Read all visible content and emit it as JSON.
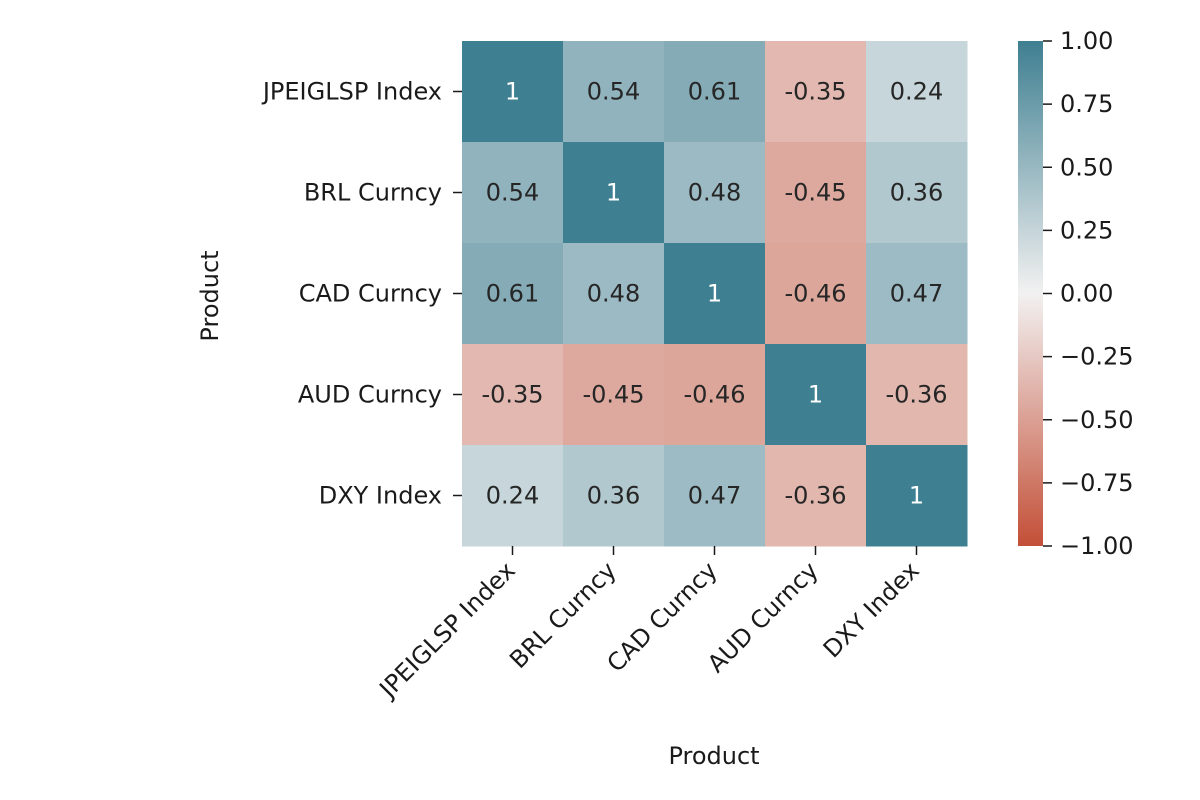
{
  "chart_data": {
    "type": "heatmap",
    "title": "",
    "xlabel": "Product",
    "ylabel": "Product",
    "rows": [
      "JPEIGLSP Index",
      "BRL Curncy",
      "CAD Curncy",
      "AUD Curncy",
      "DXY Index"
    ],
    "columns": [
      "JPEIGLSP Index",
      "BRL Curncy",
      "CAD Curncy",
      "AUD Curncy",
      "DXY Index"
    ],
    "values": [
      [
        1,
        0.54,
        0.61,
        -0.35,
        0.24
      ],
      [
        0.54,
        1,
        0.48,
        -0.45,
        0.36
      ],
      [
        0.61,
        0.48,
        1,
        -0.46,
        0.47
      ],
      [
        -0.35,
        -0.45,
        -0.46,
        1,
        -0.36
      ],
      [
        0.24,
        0.36,
        0.47,
        -0.36,
        1
      ]
    ],
    "cell_labels": [
      [
        "1",
        "0.54",
        "0.61",
        "-0.35",
        "0.24"
      ],
      [
        "0.54",
        "1",
        "0.48",
        "-0.45",
        "0.36"
      ],
      [
        "0.61",
        "0.48",
        "1",
        "-0.46",
        "0.47"
      ],
      [
        "-0.35",
        "-0.45",
        "-0.46",
        "1",
        "-0.36"
      ],
      [
        "0.24",
        "0.36",
        "0.47",
        "-0.36",
        "1"
      ]
    ],
    "colorbar": {
      "range": [
        -1.0,
        1.0
      ],
      "ticks": [
        1.0,
        0.75,
        0.5,
        0.25,
        0.0,
        -0.25,
        -0.5,
        -0.75,
        -1.0
      ],
      "tick_labels": [
        "1.00",
        "0.75",
        "0.50",
        "0.25",
        "0.00",
        "−0.25",
        "−0.50",
        "−0.75",
        "−1.00"
      ],
      "colors": {
        "low": "#c34f37",
        "mid": "#f2f1f1",
        "high": "#3e7f91"
      }
    },
    "grid": false
  }
}
